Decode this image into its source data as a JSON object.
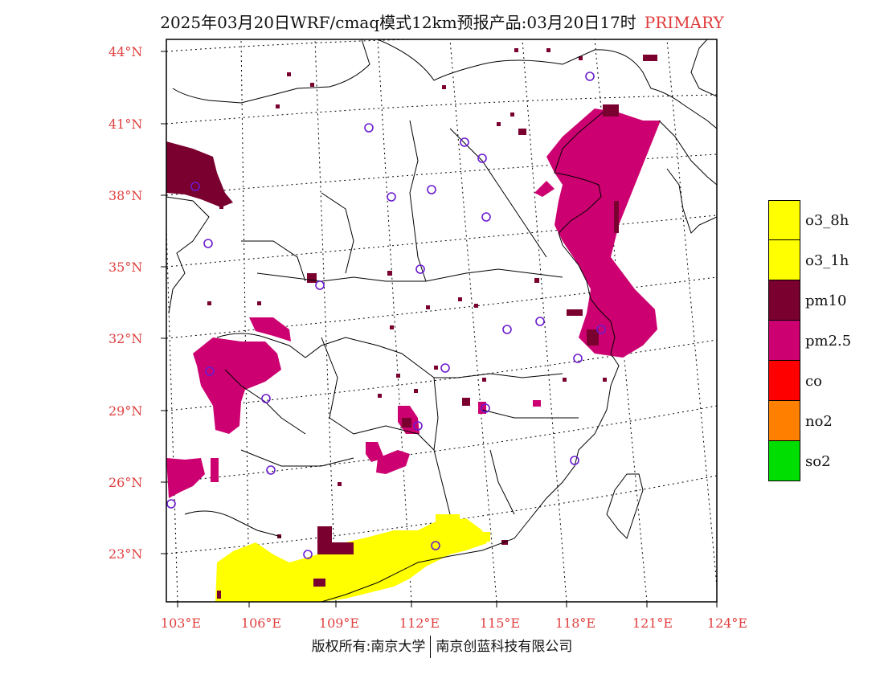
{
  "title": {
    "main": "2025年03月20日WRF/cmaq模式12km预报产品:03月20日17时",
    "tag": "PRIMARY",
    "tag_color": "#e03c3c"
  },
  "map": {
    "lat_labels": [
      "44°N",
      "41°N",
      "38°N",
      "35°N",
      "32°N",
      "29°N",
      "26°N",
      "23°N"
    ],
    "lon_labels": [
      "103°E",
      "106°E",
      "109°E",
      "112°E",
      "115°E",
      "118°E",
      "121°E",
      "124°E"
    ],
    "label_color": "#e04040"
  },
  "legend": [
    {
      "label": "o3_8h",
      "color": "#ffff00"
    },
    {
      "label": "o3_1h",
      "color": "#ffff00"
    },
    {
      "label": "pm10",
      "color": "#7a0030"
    },
    {
      "label": "pm2.5",
      "color": "#cc0070"
    },
    {
      "label": "co",
      "color": "#ff0000"
    },
    {
      "label": "no2",
      "color": "#ff8000"
    },
    {
      "label": "so2",
      "color": "#00dd00"
    }
  ],
  "footer": {
    "left": "版权所有:南京大学",
    "right": "南京创蓝科技有限公司"
  }
}
